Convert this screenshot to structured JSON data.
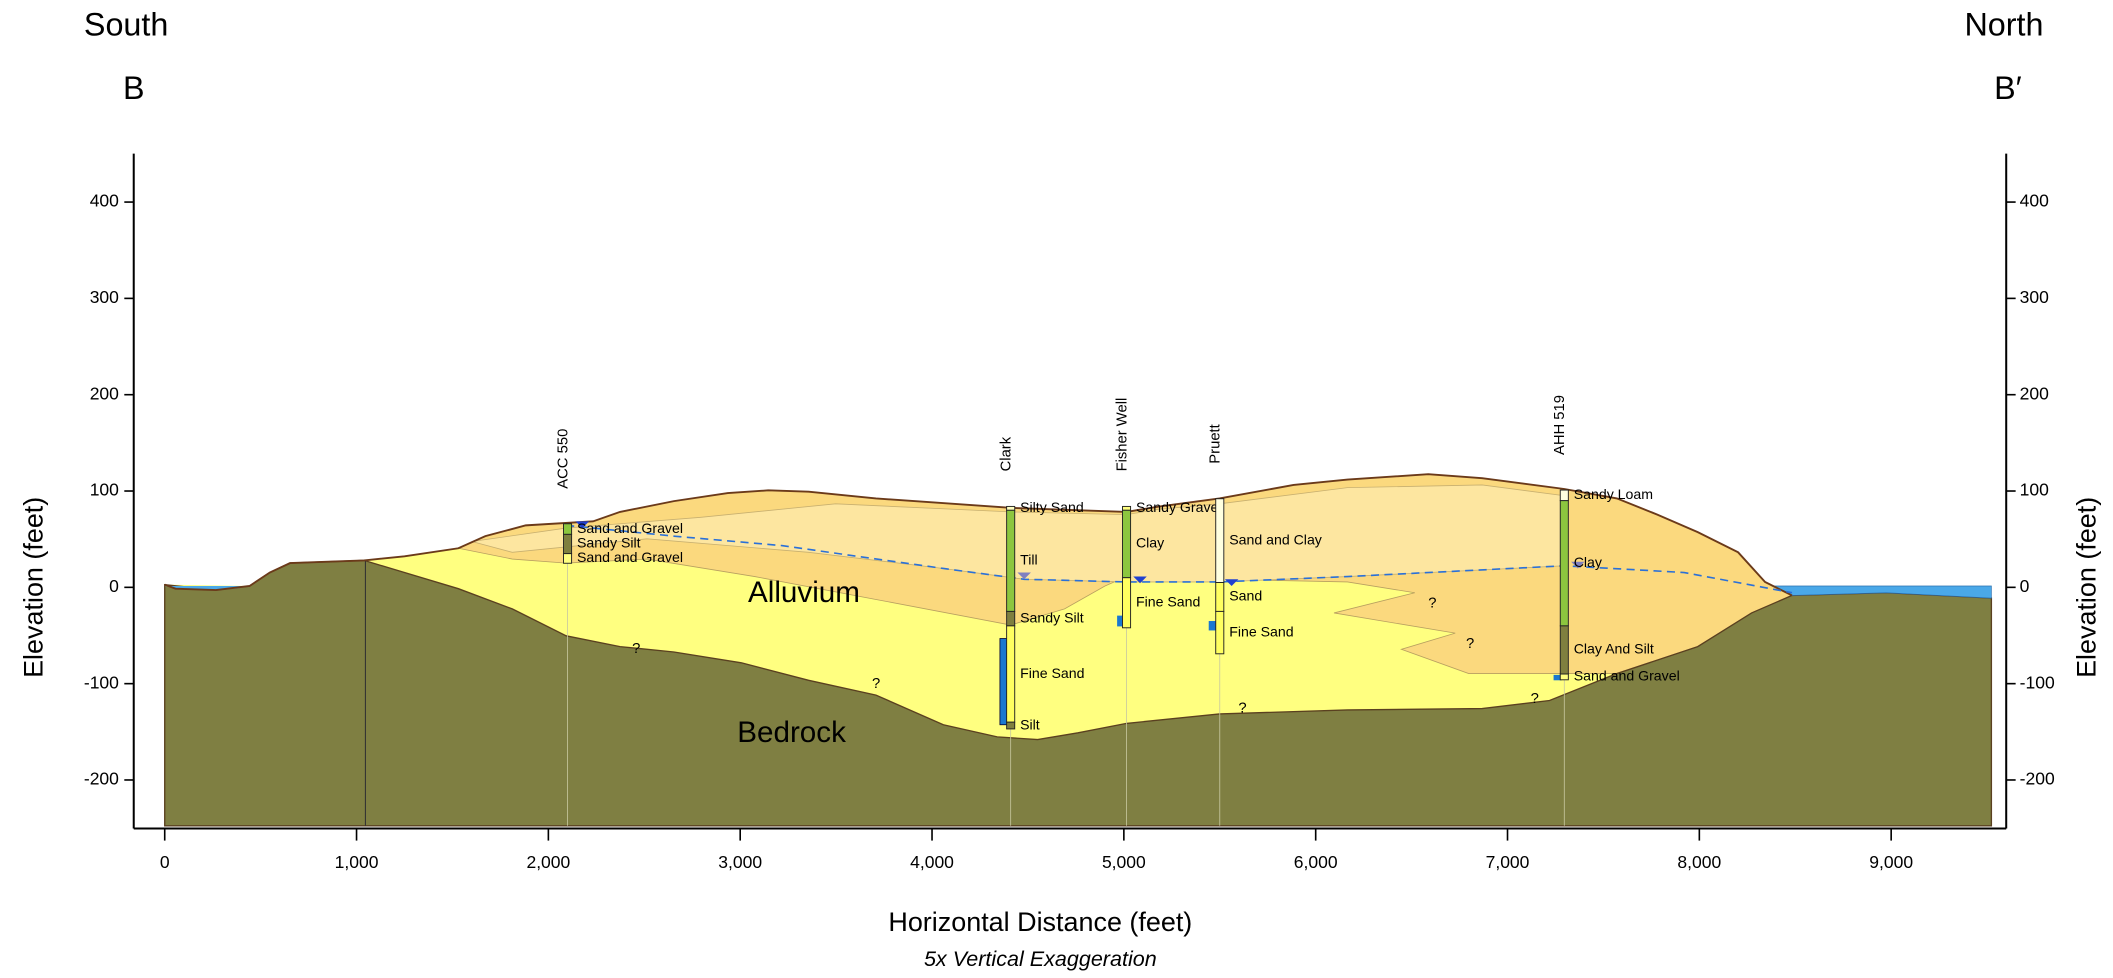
{
  "labels": {
    "south": "South",
    "north": "North",
    "b_left": "B",
    "b_right": "B′",
    "alluvium": "Alluvium",
    "bedrock": "Bedrock",
    "question_marks": [
      "?",
      "?",
      "?",
      "?",
      "?",
      "?"
    ]
  },
  "chart_data": {
    "type": "cross-section",
    "xlabel": "Horizontal Distance (feet)",
    "xlabel_note": "5x Vertical Exaggeration",
    "ylabel": "Elevation (feet)",
    "xlim": [
      0,
      9500
    ],
    "ylim": [
      -250,
      450
    ],
    "xticks": [
      0,
      {
        "value": 1000,
        "label": "1,000"
      },
      {
        "value": 2000,
        "label": "2,000"
      },
      {
        "value": 3000,
        "label": "3,000"
      },
      {
        "value": 4000,
        "label": "4,000"
      },
      {
        "value": 5000,
        "label": "5,000"
      },
      {
        "value": 6000,
        "label": "6,000"
      },
      {
        "value": 7000,
        "label": "7,000"
      },
      {
        "value": 8000,
        "label": "8,000"
      },
      {
        "value": 9000,
        "label": "9,000"
      }
    ],
    "yticks": [
      -200,
      -100,
      0,
      100,
      200,
      300,
      400
    ],
    "wells": [
      {
        "name": "ACC 550",
        "x": 2100,
        "layers": [
          {
            "label": "Sand and Gravel",
            "top": 66,
            "bottom": 55,
            "color": "#8cc63f"
          },
          {
            "label": "Sandy Silt",
            "top": 55,
            "bottom": 35,
            "color": "#7f7f3f"
          },
          {
            "label": "Sand and Gravel",
            "top": 35,
            "bottom": 25,
            "color": "#ffff80"
          }
        ]
      },
      {
        "name": "Clark",
        "x": 4410,
        "layers": [
          {
            "label": "Silty Sand",
            "top": 84,
            "bottom": 80,
            "color": "#ffffc0"
          },
          {
            "label": "Till",
            "top": 80,
            "bottom": -25,
            "color": "#8cc63f"
          },
          {
            "label": "Sandy Silt",
            "top": -25,
            "bottom": -40,
            "color": "#7f7f3f"
          },
          {
            "label": "Fine Sand",
            "top": -40,
            "bottom": -140,
            "color": "#ffff60"
          },
          {
            "label": "Silt",
            "top": -140,
            "bottom": -147,
            "color": "#7f7f3f"
          }
        ]
      },
      {
        "name": "Fisher Well",
        "x": 5014,
        "layers": [
          {
            "label": "Sandy Gravel",
            "top": 84,
            "bottom": 80,
            "color": "#ffff80"
          },
          {
            "label": "Clay",
            "top": 80,
            "bottom": 10,
            "color": "#8cc63f"
          },
          {
            "label": "Fine Sand",
            "top": 10,
            "bottom": -42,
            "color": "#ffff60"
          }
        ]
      },
      {
        "name": "Pruett",
        "x": 5500,
        "layers": [
          {
            "label": "Sand and Clay",
            "top": 92,
            "bottom": 5,
            "color": "#ffffe0"
          },
          {
            "label": "Sand",
            "top": 5,
            "bottom": -25,
            "color": "#ffff60"
          },
          {
            "label": "Fine Sand",
            "top": -25,
            "bottom": -69,
            "color": "#ffff60"
          }
        ]
      },
      {
        "name": "AHH 519",
        "x": 7296,
        "layers": [
          {
            "label": "Sandy Loam",
            "top": 101,
            "bottom": 90,
            "color": "#ffffe0"
          },
          {
            "label": "Clay",
            "top": 90,
            "bottom": -40,
            "color": "#8cc63f"
          },
          {
            "label": "Clay And Silt",
            "top": -40,
            "bottom": -90,
            "color": "#7f7f3f"
          },
          {
            "label": "Sand and Gravel",
            "top": -90,
            "bottom": -96,
            "color": "#ffff80"
          }
        ]
      }
    ]
  }
}
